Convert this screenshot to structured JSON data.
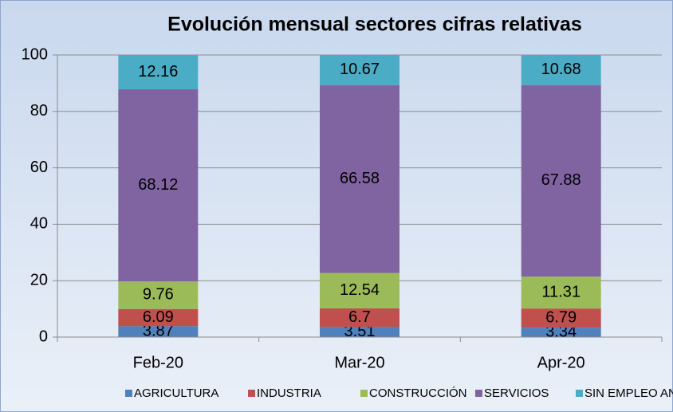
{
  "chart_data": {
    "type": "stacked_bar",
    "title": "Evolución mensual sectores cifras relativas",
    "categories": [
      "Feb-20",
      "Mar-20",
      "Apr-20"
    ],
    "series": [
      {
        "name": "AGRICULTURA",
        "color": "#4f81bd",
        "values": [
          3.87,
          3.51,
          3.34
        ]
      },
      {
        "name": "INDUSTRIA",
        "color": "#c0504d",
        "values": [
          6.09,
          6.7,
          6.79
        ]
      },
      {
        "name": "CONSTRUCCIÓN",
        "color": "#9bbb59",
        "values": [
          9.76,
          12.54,
          11.31
        ]
      },
      {
        "name": "SERVICIOS",
        "color": "#8064a2",
        "values": [
          68.12,
          66.58,
          67.88
        ]
      },
      {
        "name": "SIN EMPLEO ANTERIOR",
        "color": "#4bacc6",
        "values": [
          12.16,
          10.67,
          10.68
        ]
      }
    ],
    "ylim": [
      0,
      100
    ],
    "yticks": [
      0,
      20,
      40,
      60,
      80,
      100
    ],
    "grid": true,
    "legend": "bottom"
  }
}
